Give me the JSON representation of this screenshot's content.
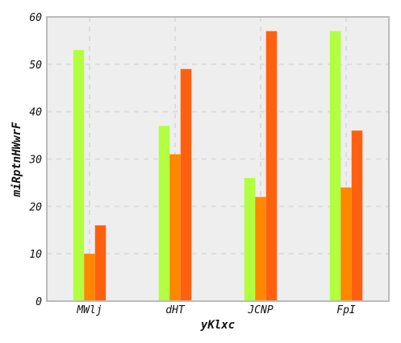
{
  "chart_data": {
    "type": "bar",
    "title": "",
    "xlabel": "yKlxc",
    "ylabel": "miRptnHWwrF",
    "categories": [
      "MWlj",
      "dHT",
      "JCNP",
      "FpI"
    ],
    "series": [
      {
        "values": [
          53,
          37,
          26,
          57
        ],
        "color": "#b2ff40"
      },
      {
        "values": [
          10,
          31,
          22,
          24
        ],
        "color": "#ff8800"
      },
      {
        "values": [
          16,
          49,
          57,
          36
        ],
        "color": "#ff6010"
      }
    ],
    "ylim": [
      0,
      60
    ],
    "yticks": [
      0,
      10,
      20,
      30,
      40,
      50,
      60
    ],
    "grid": true,
    "legend": "none",
    "colors": {
      "plot_background": "#eeeeee",
      "frame": "#bbbbbb",
      "grid": "#dddddd"
    }
  }
}
